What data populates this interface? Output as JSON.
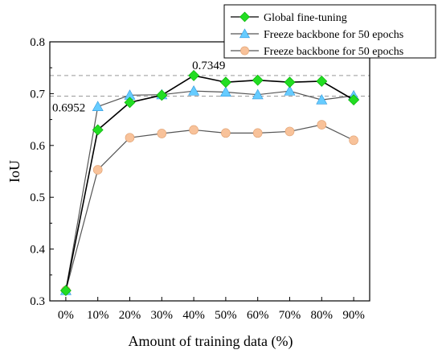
{
  "chart_data": {
    "type": "line",
    "title": "",
    "xlabel": "Amount of training data (%)",
    "ylabel": "IoU",
    "categories": [
      "0%",
      "10%",
      "20%",
      "30%",
      "40%",
      "50%",
      "60%",
      "70%",
      "80%",
      "90%"
    ],
    "ylim": [
      0.3,
      0.8
    ],
    "yticks": [
      "0.3",
      "0.4",
      "0.5",
      "0.6",
      "0.7",
      "0.8"
    ],
    "grid": false,
    "legend_position": "top-right",
    "series": [
      {
        "name": "Global fine-tuning",
        "marker": "diamond",
        "marker_color": "#22dd22",
        "line_color": "#000000",
        "values": [
          0.32,
          0.63,
          0.683,
          0.697,
          0.7349,
          0.722,
          0.726,
          0.722,
          0.724,
          0.688
        ]
      },
      {
        "name": "Freeze backbone for 50 epochs",
        "marker": "triangle",
        "marker_color": "#66ccff",
        "line_color": "#555555",
        "values": [
          0.32,
          0.675,
          0.697,
          0.698,
          0.705,
          0.703,
          0.698,
          0.705,
          0.688,
          0.696
        ]
      },
      {
        "name": "Freeze  backbone for 50 epochs",
        "marker": "circle",
        "marker_color": "#f8c29a",
        "line_color": "#555555",
        "values": [
          0.32,
          0.553,
          0.615,
          0.623,
          0.63,
          0.624,
          0.624,
          0.627,
          0.64,
          0.61
        ]
      }
    ],
    "reference_lines": [
      {
        "value": 0.7349,
        "label": "0.7349",
        "color": "#999999"
      },
      {
        "value": 0.6952,
        "label": "0.6952",
        "color": "#999999"
      }
    ]
  }
}
